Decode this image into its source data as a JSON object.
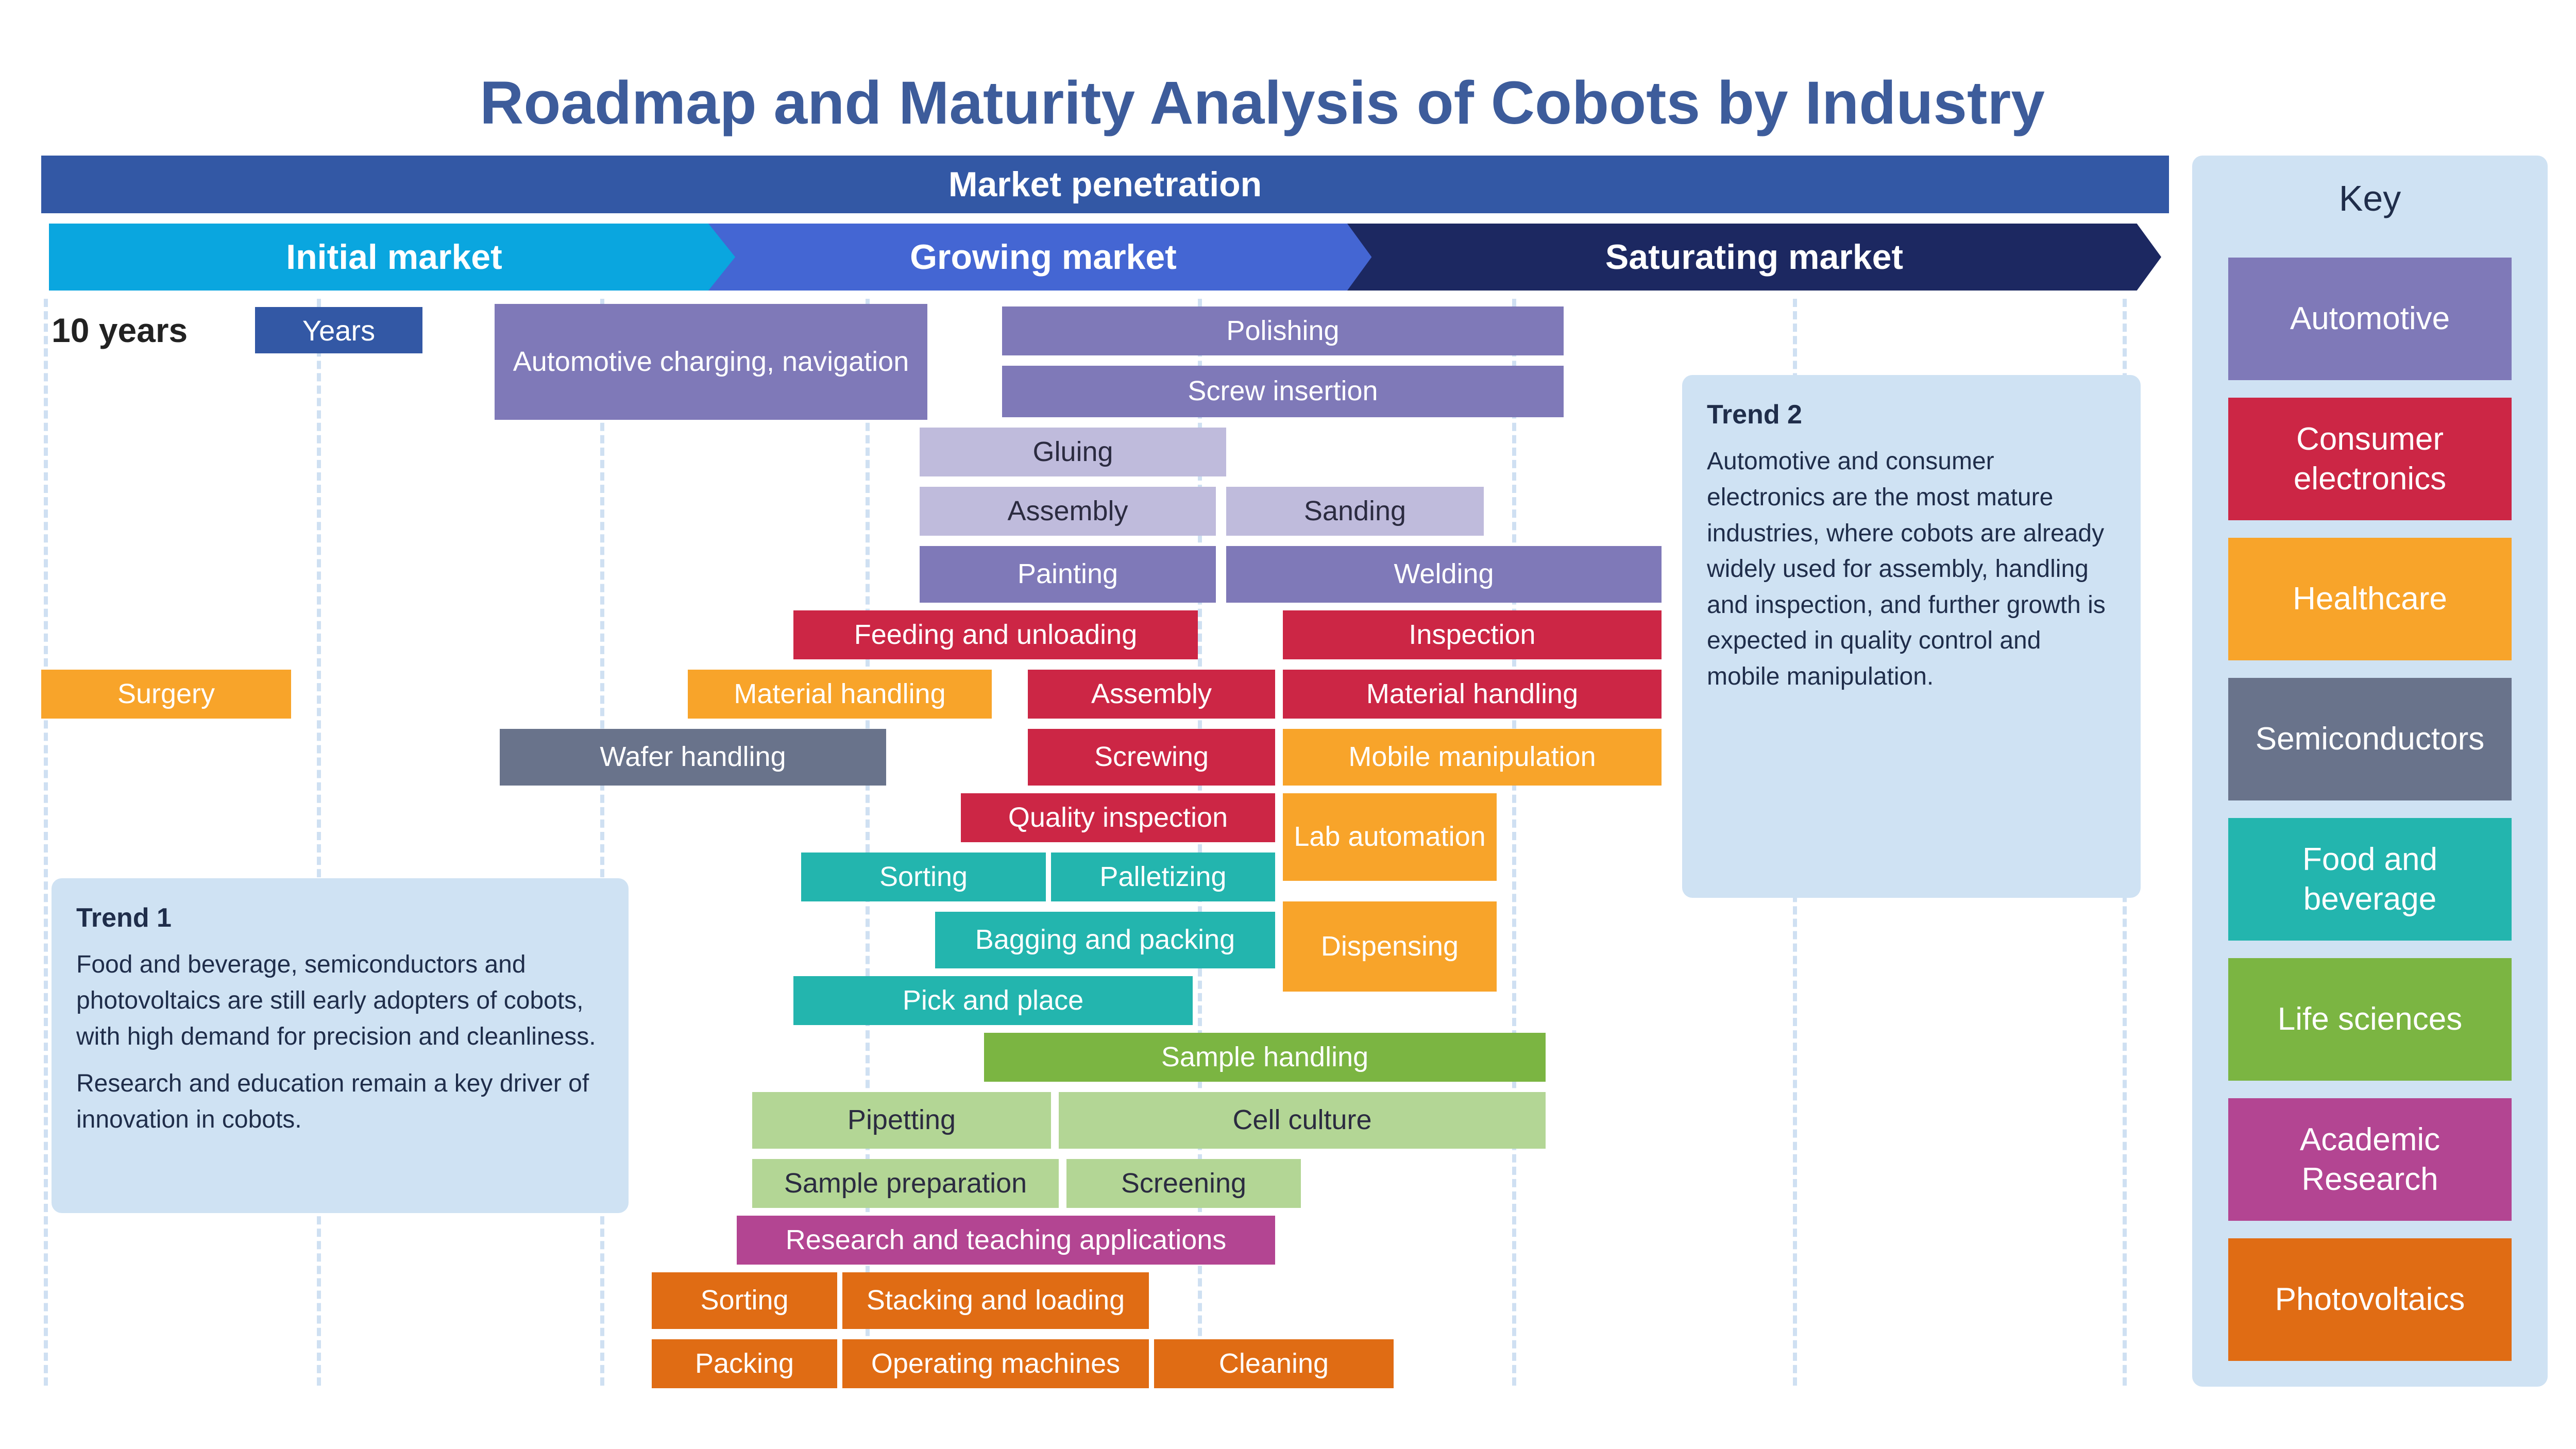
{
  "title": "Roadmap and Maturity Analysis of Cobots by Industry",
  "banner": "Market penetration",
  "stages": [
    "Initial market",
    "Growing market",
    "Saturating market"
  ],
  "timeline": {
    "label": "10 years",
    "tag": "Years"
  },
  "colors": {
    "automotive": "#7f79b8",
    "automotive_light": "#bfbbdc",
    "consumer_electronics": "#cc2645",
    "healthcare": "#f8a42a",
    "semiconductors": "#69738b",
    "food_and_beverage": "#23b5ae",
    "life_sciences": "#7bb542",
    "life_sciences_light": "#b3d695",
    "academic_research": "#b34592",
    "photovoltaics": "#e06c14"
  },
  "bars": [
    {
      "label": "Automotive charging, navigation",
      "color": "automotive"
    },
    {
      "label": "Polishing",
      "color": "automotive"
    },
    {
      "label": "Screw insertion",
      "color": "automotive"
    },
    {
      "label": "Gluing",
      "color": "automotive_light"
    },
    {
      "label": "Assembly",
      "color": "automotive_light"
    },
    {
      "label": "Sanding",
      "color": "automotive_light"
    },
    {
      "label": "Painting",
      "color": "automotive"
    },
    {
      "label": "Welding",
      "color": "automotive"
    },
    {
      "label": "Feeding and unloading",
      "color": "consumer_electronics"
    },
    {
      "label": "Inspection",
      "color": "consumer_electronics"
    },
    {
      "label": "Surgery",
      "color": "healthcare"
    },
    {
      "label": "Material handling",
      "color": "healthcare"
    },
    {
      "label": "Assembly",
      "color": "consumer_electronics"
    },
    {
      "label": "Material handling",
      "color": "consumer_electronics"
    },
    {
      "label": "Wafer handling",
      "color": "semiconductors"
    },
    {
      "label": "Screwing",
      "color": "consumer_electronics"
    },
    {
      "label": "Mobile manipulation",
      "color": "healthcare"
    },
    {
      "label": "Quality inspection",
      "color": "consumer_electronics"
    },
    {
      "label": "Lab automation",
      "color": "healthcare"
    },
    {
      "label": "Sorting",
      "color": "food_and_beverage"
    },
    {
      "label": "Palletizing",
      "color": "food_and_beverage"
    },
    {
      "label": "Bagging and packing",
      "color": "food_and_beverage"
    },
    {
      "label": "Dispensing",
      "color": "healthcare"
    },
    {
      "label": "Pick and place",
      "color": "food_and_beverage"
    },
    {
      "label": "Sample handling",
      "color": "life_sciences"
    },
    {
      "label": "Pipetting",
      "color": "life_sciences_light"
    },
    {
      "label": "Cell culture",
      "color": "life_sciences_light"
    },
    {
      "label": "Sample preparation",
      "color": "life_sciences_light"
    },
    {
      "label": "Screening",
      "color": "life_sciences_light"
    },
    {
      "label": "Research and teaching applications",
      "color": "academic_research"
    },
    {
      "label": "Sorting",
      "color": "photovoltaics"
    },
    {
      "label": "Stacking and loading",
      "color": "photovoltaics"
    },
    {
      "label": "Packing",
      "color": "photovoltaics"
    },
    {
      "label": "Operating machines",
      "color": "photovoltaics"
    },
    {
      "label": "Cleaning",
      "color": "photovoltaics"
    }
  ],
  "notes": [
    {
      "heading": "Trend 1",
      "paragraphs": [
        "Food and beverage, semiconductors and photovoltaics are still early adopters of cobots, with high demand for precision and cleanliness.",
        "Research and education remain a key driver of innovation in cobots."
      ]
    },
    {
      "heading": "Trend 2",
      "paragraphs": [
        "Automotive and consumer electronics are the most mature industries, where cobots are already widely used for assembly, handling and inspection, and further growth is expected in quality control and mobile manipulation."
      ]
    }
  ],
  "key": {
    "title": "Key",
    "items": [
      {
        "label": "Automotive",
        "color": "automotive"
      },
      {
        "label": "Consumer electronics",
        "color": "consumer_electronics"
      },
      {
        "label": "Healthcare",
        "color": "healthcare"
      },
      {
        "label": "Semiconductors",
        "color": "semiconductors"
      },
      {
        "label": "Food and beverage",
        "color": "food_and_beverage"
      },
      {
        "label": "Life sciences",
        "color": "life_sciences"
      },
      {
        "label": "Academic Research",
        "color": "academic_research"
      },
      {
        "label": "Photovoltaics",
        "color": "photovoltaics"
      }
    ]
  }
}
